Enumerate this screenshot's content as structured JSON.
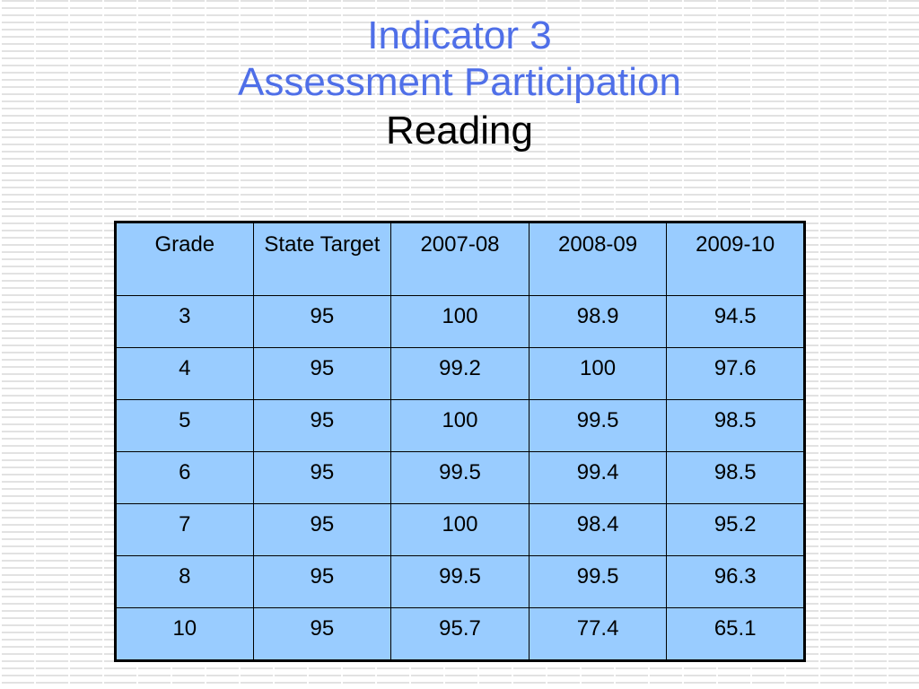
{
  "title": {
    "line1": "Indicator 3",
    "line2": "Assessment Participation",
    "subtitle": "Reading"
  },
  "table": {
    "headers": [
      "Grade",
      "State Target",
      "2007-08",
      "2008-09",
      "2009-10"
    ],
    "rows": [
      [
        "3",
        "95",
        "100",
        "98.9",
        "94.5"
      ],
      [
        "4",
        "95",
        "99.2",
        "100",
        "97.6"
      ],
      [
        "5",
        "95",
        "100",
        "99.5",
        "98.5"
      ],
      [
        "6",
        "95",
        "99.5",
        "99.4",
        "98.5"
      ],
      [
        "7",
        "95",
        "100",
        "98.4",
        "95.2"
      ],
      [
        "8",
        "95",
        "99.5",
        "99.5",
        "96.3"
      ],
      [
        "10",
        "95",
        "95.7",
        "77.4",
        "65.1"
      ]
    ]
  },
  "colors": {
    "title": "#4f6fe8",
    "table_fill": "#99ccff",
    "border": "#000000"
  }
}
